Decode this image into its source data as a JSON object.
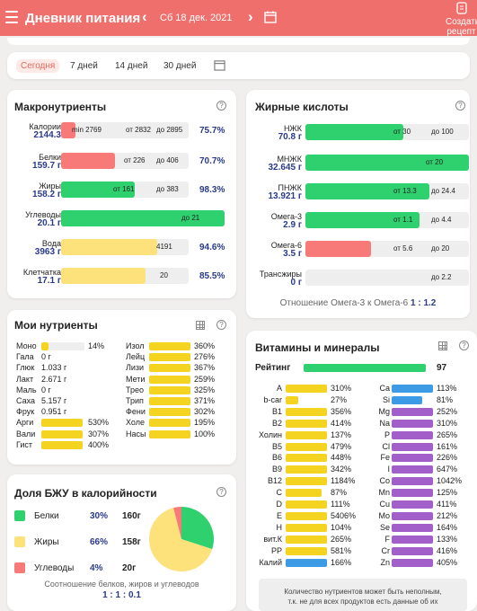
{
  "header": {
    "title": "Дневник питания",
    "date": "Сб 18 дек. 2021",
    "create_line1": "Создать",
    "create_line2": "рецепт"
  },
  "periods": [
    "Сегодня",
    "7 дней",
    "14 дней",
    "30 дней"
  ],
  "macro": {
    "title": "Макронутриенты",
    "rows": [
      {
        "name": "Калории",
        "value": "2144.3",
        "min": "min 2769",
        "from": "от 2832",
        "to": "до 2895",
        "pct": "75.7%"
      },
      {
        "name": "Белки",
        "value": "159.7 г",
        "from": "от 226",
        "to": "до 406",
        "pct": "70.7%"
      },
      {
        "name": "Жиры",
        "value": "158.2 г",
        "from": "от 161",
        "to": "до 383",
        "pct": "98.3%"
      },
      {
        "name": "Углеводы",
        "value": "20.1 г",
        "to": "до 21"
      },
      {
        "name": "Вода",
        "value": "3963 г",
        "num": "4191",
        "pct": "94.6%"
      },
      {
        "name": "Клетчатка",
        "value": "17.1 г",
        "num": "20",
        "pct": "85.5%"
      }
    ]
  },
  "fatty": {
    "title": "Жирные кислоты",
    "rows": [
      {
        "name": "НЖК",
        "value": "70.8 г",
        "from": "от 30",
        "to": "до 100"
      },
      {
        "name": "МНЖК",
        "value": "32.645 г",
        "from": "от 20"
      },
      {
        "name": "ПНЖК",
        "value": "13.921 г",
        "from": "от 13.3",
        "to": "до 24.4"
      },
      {
        "name": "Омега-3",
        "value": "2.9 г",
        "from": "от 1.1",
        "to": "до 4.4"
      },
      {
        "name": "Омега-6",
        "value": "3.5 г",
        "from": "от 5.6",
        "to": "до 20"
      },
      {
        "name": "Трансжиры",
        "value": "0 г",
        "to": "до 2.2"
      }
    ],
    "ratio": "Отношение Омега-3 к Омега-6",
    "ratio_val": "1 : 1.2"
  },
  "my": {
    "title": "Мои нутриенты",
    "left": [
      {
        "n": "Моно",
        "v": "14%"
      },
      {
        "n": "Гала",
        "v": "0 г"
      },
      {
        "n": "Глюк",
        "v": "1.033 г"
      },
      {
        "n": "Лакт",
        "v": "2.671 г"
      },
      {
        "n": "Маль",
        "v": "0 г"
      },
      {
        "n": "Саха",
        "v": "5.157 г"
      },
      {
        "n": "Фрук",
        "v": "0.951 г"
      },
      {
        "n": "Арги",
        "v": "530%"
      },
      {
        "n": "Вали",
        "v": "307%"
      },
      {
        "n": "Гист",
        "v": "400%"
      }
    ],
    "right": [
      {
        "n": "Изол",
        "v": "360%"
      },
      {
        "n": "Лейц",
        "v": "276%"
      },
      {
        "n": "Лизи",
        "v": "367%"
      },
      {
        "n": "Мети",
        "v": "259%"
      },
      {
        "n": "Трео",
        "v": "325%"
      },
      {
        "n": "Трип",
        "v": "371%"
      },
      {
        "n": "Фени",
        "v": "302%"
      },
      {
        "n": "Холе",
        "v": "195%"
      },
      {
        "n": "Насы",
        "v": "100%"
      }
    ]
  },
  "bju": {
    "title": "Доля БЖУ в калорийности",
    "rows": [
      {
        "name": "Белки",
        "pct": "30%",
        "g": "160г",
        "color": "#2fd06e"
      },
      {
        "name": "Жиры",
        "pct": "66%",
        "g": "158г",
        "color": "#fde17a"
      },
      {
        "name": "Углеводы",
        "pct": "4%",
        "g": "20г",
        "color": "#f87a78"
      }
    ],
    "ratio": "Соотношение белков, жиров и углеводов",
    "ratio_val": "1 : 1 : 0.1"
  },
  "vit": {
    "title": "Витамины и минералы",
    "rating_label": "Рейтинг",
    "rating": "97",
    "left": [
      {
        "n": "A",
        "v": "310%"
      },
      {
        "n": "b-car",
        "v": "27%"
      },
      {
        "n": "B1",
        "v": "356%"
      },
      {
        "n": "B2",
        "v": "414%"
      },
      {
        "n": "Холин",
        "v": "137%"
      },
      {
        "n": "B5",
        "v": "479%"
      },
      {
        "n": "B6",
        "v": "448%"
      },
      {
        "n": "B9",
        "v": "342%"
      },
      {
        "n": "B12",
        "v": "1184%"
      },
      {
        "n": "C",
        "v": "87%"
      },
      {
        "n": "D",
        "v": "111%"
      },
      {
        "n": "E",
        "v": "5406%"
      },
      {
        "n": "H",
        "v": "104%"
      },
      {
        "n": "вит.К",
        "v": "265%"
      },
      {
        "n": "PP",
        "v": "581%"
      },
      {
        "n": "Калий",
        "v": "166%"
      }
    ],
    "right": [
      {
        "n": "Ca",
        "v": "113%"
      },
      {
        "n": "Si",
        "v": "81%"
      },
      {
        "n": "Mg",
        "v": "252%"
      },
      {
        "n": "Na",
        "v": "310%"
      },
      {
        "n": "P",
        "v": "265%"
      },
      {
        "n": "Cl",
        "v": "161%"
      },
      {
        "n": "Fe",
        "v": "226%"
      },
      {
        "n": "I",
        "v": "647%"
      },
      {
        "n": "Co",
        "v": "1042%"
      },
      {
        "n": "Mn",
        "v": "125%"
      },
      {
        "n": "Cu",
        "v": "411%"
      },
      {
        "n": "Mo",
        "v": "212%"
      },
      {
        "n": "Se",
        "v": "164%"
      },
      {
        "n": "F",
        "v": "133%"
      },
      {
        "n": "Cr",
        "v": "416%"
      },
      {
        "n": "Zn",
        "v": "405%"
      }
    ],
    "note1": "Количество нутриентов может быть неполным,",
    "note2": "т.к. не для всех продуктов есть данные об их"
  }
}
